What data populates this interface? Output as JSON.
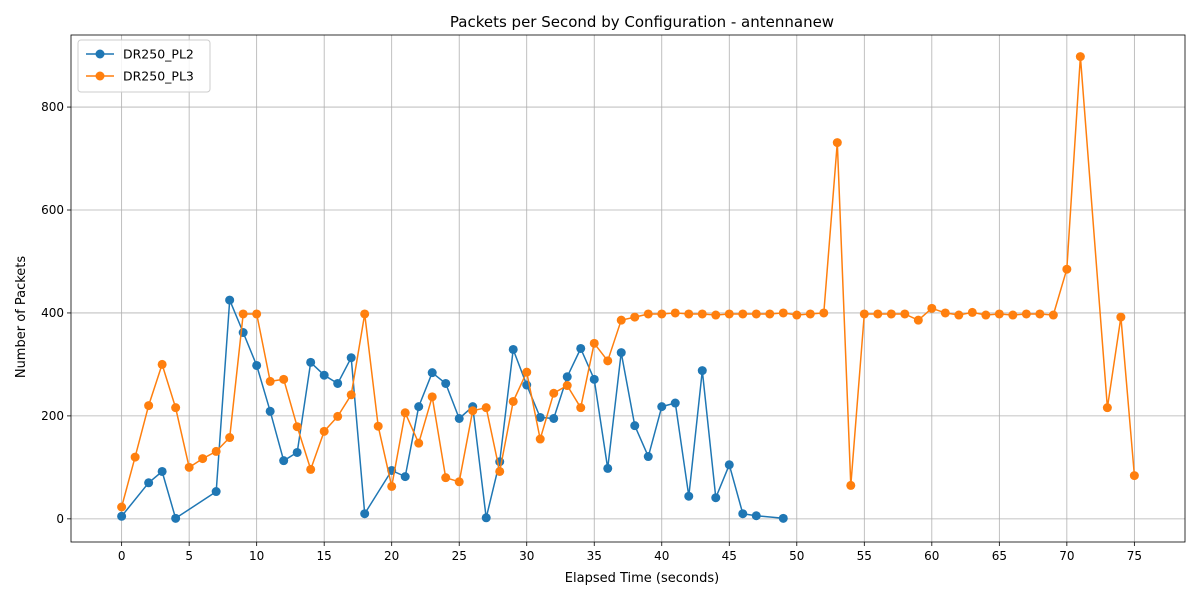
{
  "chart_data": {
    "type": "line",
    "title": "Packets per Second by Configuration - antennanew",
    "xlabel": "Elapsed Time (seconds)",
    "ylabel": "Number of Packets",
    "xlim": [
      -3.75,
      78.75
    ],
    "ylim": [
      -45,
      940
    ],
    "xticks": [
      0,
      5,
      10,
      15,
      20,
      25,
      30,
      35,
      40,
      45,
      50,
      55,
      60,
      65,
      70,
      75
    ],
    "yticks": [
      0,
      200,
      400,
      600,
      800
    ],
    "grid": true,
    "legend_position": "upper-left",
    "series": [
      {
        "name": "DR250_PL2",
        "color": "#1f77b4",
        "x": [
          0,
          2,
          3,
          4,
          7,
          8,
          9,
          10,
          11,
          12,
          13,
          14,
          15,
          16,
          17,
          18,
          20,
          21,
          22,
          23,
          24,
          25,
          26,
          27,
          28,
          29,
          30,
          31,
          32,
          33,
          34,
          35,
          36,
          37,
          38,
          39,
          40,
          41,
          42,
          43,
          44,
          45,
          46,
          47,
          49
        ],
        "y": [
          5,
          70,
          92,
          1,
          53,
          425,
          362,
          298,
          209,
          113,
          129,
          304,
          279,
          263,
          313,
          10,
          94,
          82,
          218,
          284,
          263,
          195,
          218,
          2,
          111,
          329,
          260,
          197,
          195,
          276,
          331,
          271,
          98,
          323,
          181,
          121,
          218,
          225,
          44,
          288,
          41,
          105,
          10,
          6,
          1
        ]
      },
      {
        "name": "DR250_PL3",
        "color": "#ff7f0e",
        "x": [
          0,
          1,
          2,
          3,
          4,
          5,
          6,
          7,
          8,
          9,
          10,
          11,
          12,
          13,
          14,
          15,
          16,
          17,
          18,
          19,
          20,
          21,
          22,
          23,
          24,
          25,
          26,
          27,
          28,
          29,
          30,
          31,
          32,
          33,
          34,
          35,
          36,
          37,
          38,
          39,
          40,
          41,
          42,
          43,
          44,
          45,
          46,
          47,
          48,
          49,
          50,
          51,
          52,
          53,
          54,
          55,
          56,
          57,
          58,
          59,
          60,
          61,
          62,
          63,
          64,
          65,
          66,
          67,
          68,
          69,
          70,
          71,
          73,
          74,
          75
        ],
        "y": [
          23,
          120,
          220,
          300,
          216,
          100,
          117,
          131,
          158,
          398,
          398,
          267,
          271,
          179,
          96,
          170,
          199,
          241,
          398,
          180,
          63,
          206,
          147,
          237,
          80,
          72,
          210,
          216,
          92,
          228,
          285,
          155,
          244,
          259,
          216,
          341,
          307,
          386,
          392,
          398,
          398,
          400,
          398,
          398,
          396,
          398,
          398,
          398,
          398,
          400,
          396,
          398,
          400,
          731,
          65,
          398,
          398,
          398,
          398,
          386,
          409,
          400,
          396,
          401,
          396,
          398,
          396,
          398,
          398,
          396,
          485,
          898,
          216,
          392,
          84
        ]
      }
    ]
  }
}
